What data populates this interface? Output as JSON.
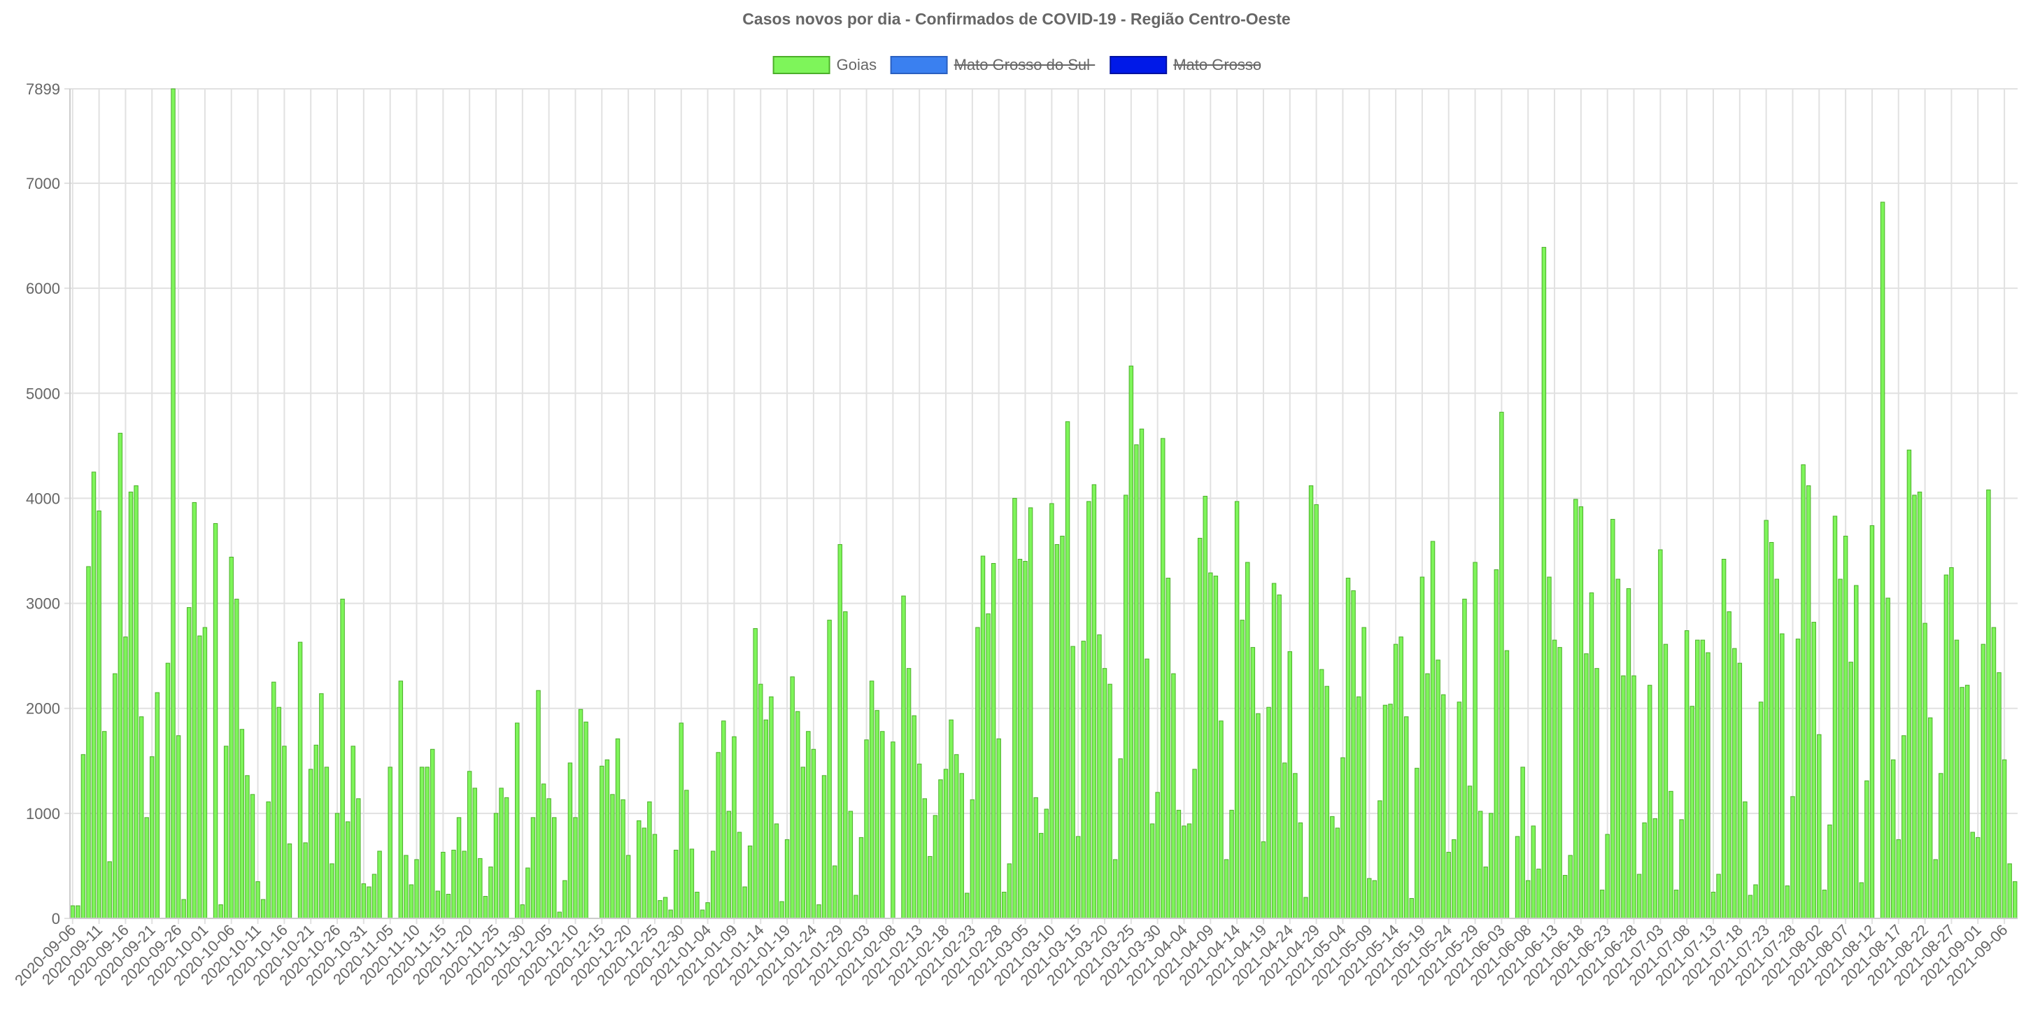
{
  "chart_data": {
    "type": "bar",
    "title": "Casos novos por dia - Confirmados de COVID-19 - Região Centro-Oeste",
    "ylim": [
      0,
      7899
    ],
    "yticks": [
      0,
      1000,
      2000,
      3000,
      4000,
      5000,
      6000,
      7000,
      7899
    ],
    "grid": true,
    "legend_position": "top-center",
    "start_date": "2020-09-06",
    "x_tick_labels": [
      "2020-09-06",
      "2020-09-11",
      "2020-09-16",
      "2020-09-21",
      "2020-09-26",
      "2020-10-01",
      "2020-10-06",
      "2020-10-11",
      "2020-10-16",
      "2020-10-21",
      "2020-10-26",
      "2020-10-31",
      "2020-11-05",
      "2020-11-10",
      "2020-11-15",
      "2020-11-20",
      "2020-11-25",
      "2020-11-30",
      "2020-12-05",
      "2020-12-10",
      "2020-12-15",
      "2020-12-20",
      "2020-12-25",
      "2020-12-30",
      "2021-01-04",
      "2021-01-09",
      "2021-01-14",
      "2021-01-19",
      "2021-01-24",
      "2021-01-29",
      "2021-02-03",
      "2021-02-08",
      "2021-02-13",
      "2021-02-18",
      "2021-02-23",
      "2021-02-28",
      "2021-03-05",
      "2021-03-10",
      "2021-03-15",
      "2021-03-20",
      "2021-03-25",
      "2021-03-30",
      "2021-04-04",
      "2021-04-09",
      "2021-04-14",
      "2021-04-19",
      "2021-04-24",
      "2021-04-29",
      "2021-05-04",
      "2021-05-09",
      "2021-05-14",
      "2021-05-19",
      "2021-05-24",
      "2021-05-29",
      "2021-06-03",
      "2021-06-08",
      "2021-06-13",
      "2021-06-18",
      "2021-06-23",
      "2021-06-28",
      "2021-07-03",
      "2021-07-08",
      "2021-07-13",
      "2021-07-18",
      "2021-07-23",
      "2021-07-28",
      "2021-08-02",
      "2021-08-07",
      "2021-08-12",
      "2021-08-17",
      "2021-08-22",
      "2021-08-27",
      "2021-09-01",
      "2021-09-06"
    ],
    "series": [
      {
        "name": "Goias",
        "color": "#7ef55a",
        "border": "#4caf2a",
        "hidden": false,
        "values": [
          120,
          120,
          1560,
          3350,
          4250,
          3880,
          1780,
          540,
          2330,
          4620,
          2680,
          4060,
          4120,
          1920,
          960,
          1540,
          2150,
          0,
          2430,
          7899,
          1740,
          180,
          2960,
          3960,
          2690,
          2770,
          0,
          3760,
          130,
          1640,
          3440,
          3040,
          1800,
          1360,
          1180,
          350,
          180,
          1110,
          2250,
          2010,
          1640,
          710,
          0,
          2630,
          720,
          1420,
          1650,
          2140,
          1440,
          520,
          1000,
          3040,
          920,
          1640,
          1140,
          330,
          300,
          420,
          640,
          0,
          1440,
          0,
          2260,
          600,
          320,
          560,
          1440,
          1440,
          1610,
          260,
          630,
          230,
          650,
          960,
          640,
          1400,
          1240,
          570,
          210,
          490,
          1000,
          1240,
          1150,
          0,
          1860,
          130,
          480,
          960,
          2170,
          1280,
          1140,
          960,
          60,
          360,
          1480,
          960,
          1990,
          1870,
          0,
          0,
          1450,
          1510,
          1180,
          1710,
          1130,
          600,
          0,
          930,
          860,
          1110,
          800,
          170,
          200,
          80,
          650,
          1860,
          1220,
          660,
          250,
          80,
          150,
          640,
          1580,
          1880,
          1020,
          1730,
          820,
          300,
          690,
          2760,
          2230,
          1890,
          2110,
          900,
          160,
          750,
          2300,
          1970,
          1440,
          1780,
          1610,
          130,
          1360,
          2840,
          500,
          3560,
          2920,
          1020,
          220,
          770,
          1700,
          2260,
          1980,
          1780,
          0,
          1680,
          0,
          3070,
          2380,
          1930,
          1470,
          1140,
          590,
          980,
          1320,
          1420,
          1890,
          1560,
          1380,
          240,
          1130,
          2770,
          3450,
          2900,
          3380,
          1710,
          250,
          520,
          4000,
          3420,
          3400,
          3910,
          1150,
          810,
          1040,
          3950,
          3560,
          3640,
          4730,
          2590,
          780,
          2640,
          3970,
          4130,
          2700,
          2380,
          2230,
          560,
          1520,
          4030,
          5260,
          4510,
          4660,
          2470,
          900,
          1200,
          4570,
          3240,
          2330,
          1030,
          880,
          900,
          1420,
          3620,
          4020,
          3290,
          3260,
          1880,
          560,
          1030,
          3970,
          2840,
          3390,
          2580,
          1950,
          730,
          2010,
          3190,
          3080,
          1480,
          2540,
          1380,
          910,
          200,
          4120,
          3940,
          2370,
          2210,
          970,
          860,
          1530,
          3240,
          3120,
          2110,
          2770,
          380,
          360,
          1120,
          2030,
          2040,
          2610,
          2680,
          1920,
          190,
          1430,
          3250,
          2330,
          3590,
          2460,
          2130,
          630,
          750,
          2060,
          3040,
          1260,
          3390,
          1020,
          490,
          1000,
          3320,
          4820,
          2550,
          0,
          780,
          1440,
          360,
          880,
          470,
          6390,
          3250,
          2650,
          2580,
          410,
          600,
          3990,
          3920,
          2520,
          3100,
          2380,
          270,
          800,
          3800,
          3230,
          2310,
          3140,
          2310,
          420,
          910,
          2220,
          950,
          3510,
          2610,
          1210,
          270,
          940,
          2740,
          2020,
          2650,
          2650,
          2530,
          250,
          420,
          3420,
          2920,
          2570,
          2430,
          1110,
          220,
          320,
          2060,
          3790,
          3580,
          3230,
          2710,
          310,
          1160,
          2660,
          4320,
          4120,
          2820,
          1750,
          270,
          890,
          3830,
          3230,
          3640,
          2440,
          3170,
          340,
          1310,
          3740,
          0,
          6820,
          3050,
          1510,
          750,
          1740,
          4460,
          4030,
          4060,
          2810,
          1910,
          560,
          1380,
          3270,
          3340,
          2650,
          2200,
          2220,
          820,
          770,
          2610,
          4080,
          2770,
          2340,
          1510,
          520,
          350
        ]
      },
      {
        "name": "Mato Grosso do Sul",
        "color": "#3a80f0",
        "border": "#2a60c0",
        "hidden": true,
        "values": []
      },
      {
        "name": "Mato Grosso",
        "color": "#0019e8",
        "border": "#0010a0",
        "hidden": true,
        "values": []
      }
    ]
  }
}
